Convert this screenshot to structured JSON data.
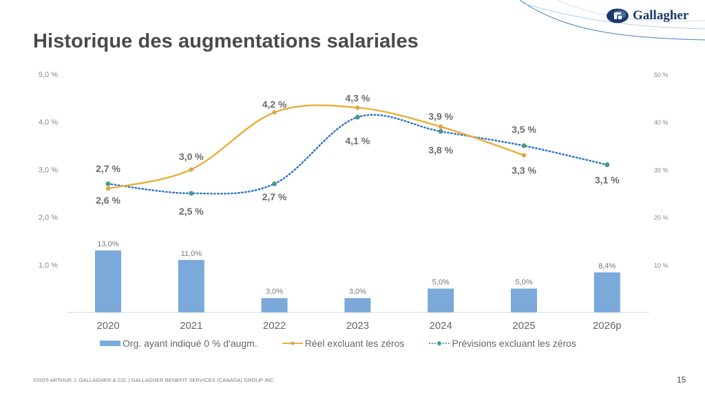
{
  "slide": {
    "title": "Historique des augmentations salariales",
    "brand": "Gallagher",
    "footer": "©2025 ARTHUR J. GALLAGHER & CO. | GALLAGHER BENEFIT SERVICES (CANADA) GROUP INC.",
    "page_number": "15",
    "colors": {
      "bar": "#7aa9da",
      "actual": "#e8b040",
      "forecast": "#2e75c8",
      "forecast_marker": "#4a9a8a",
      "text": "#4a4a4a"
    }
  },
  "chart_data": {
    "type": "bar",
    "title": "Historique des augmentations salariales",
    "categories": [
      "2020",
      "2021",
      "2022",
      "2023",
      "2024",
      "2025",
      "2026p"
    ],
    "y_left": {
      "ticks": [
        "1,0 %",
        "2,0 %",
        "3,0 %",
        "4,0 %",
        "5,0 %"
      ],
      "range": [
        0,
        5
      ]
    },
    "y_right": {
      "ticks": [
        "10 %",
        "20 %",
        "30 %",
        "40 %",
        "50 %"
      ],
      "range": [
        0,
        50
      ]
    },
    "series": [
      {
        "name": "Org. ayant indiqué 0 % d'augm.",
        "type": "bar",
        "axis": "right",
        "values": [
          13.0,
          11.0,
          3.0,
          3.0,
          5.0,
          5.0,
          8.4
        ],
        "labels": [
          "13,0%",
          "11,0%",
          "3,0%",
          "3,0%",
          "5,0%",
          "5,0%",
          "8,4%"
        ]
      },
      {
        "name": "Réel excluant les zéros",
        "type": "line",
        "axis": "left",
        "values": [
          2.6,
          3.0,
          4.2,
          4.3,
          3.9,
          3.3,
          null
        ],
        "labels": [
          "2,6 %",
          "3,0 %",
          "4,2 %",
          "4,3 %",
          "3,9 %",
          "3,3 %",
          null
        ]
      },
      {
        "name": "Prévisions excluant les zéros",
        "type": "line",
        "style": "dotted",
        "axis": "left",
        "values": [
          2.7,
          2.5,
          2.7,
          4.1,
          3.8,
          3.5,
          3.1
        ],
        "labels": [
          "2,7 %",
          "2,5 %",
          "2,7 %",
          "4,1 %",
          "3,8 %",
          "3,5 %",
          "3,1 %"
        ]
      }
    ],
    "legend_position": "bottom",
    "grid": false
  }
}
